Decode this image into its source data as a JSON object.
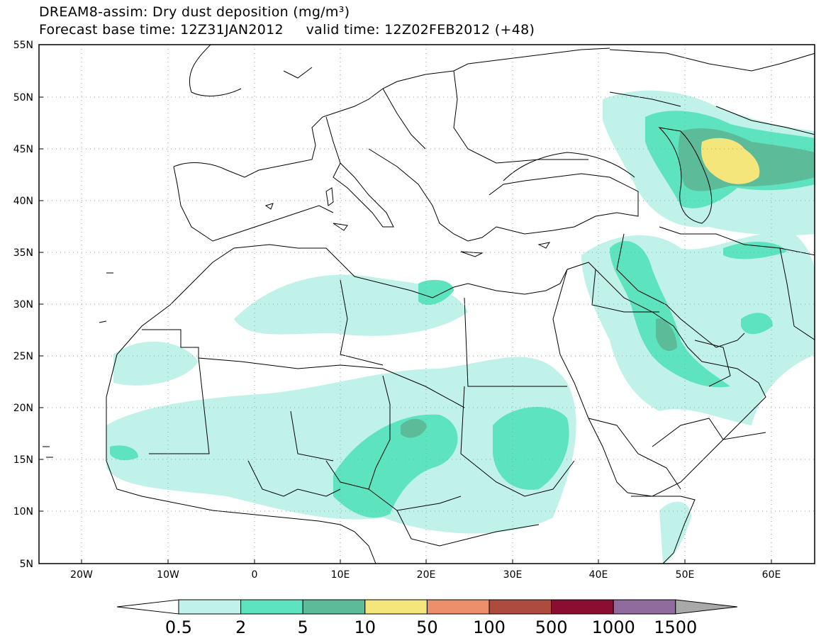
{
  "title_line1": "DREAM8-assim: Dry dust deposition (mg/m³)",
  "title_line2": "Forecast base time: 12Z31JAN2012     valid time: 12Z02FEB2012 (+48)",
  "lat_labels": [
    "55N",
    "50N",
    "45N",
    "40N",
    "35N",
    "30N",
    "25N",
    "20N",
    "15N",
    "10N",
    "5N"
  ],
  "lon_labels": [
    "20W",
    "10W",
    "0",
    "10E",
    "20E",
    "30E",
    "40E",
    "50E",
    "60E"
  ],
  "colorbar": {
    "labels": [
      "0.5",
      "2",
      "5",
      "10",
      "50",
      "100",
      "500",
      "1000",
      "1500"
    ],
    "colors": [
      "#ffffff",
      "#c0f2ea",
      "#5ee3bf",
      "#5cbb98",
      "#f4e67a",
      "#ec8f6b",
      "#ad4c3e",
      "#8b0d2f",
      "#8f6c9d",
      "#a9a9a9"
    ]
  },
  "map_layers": {
    "land_color": "#ffffff",
    "coast_color": "#000000"
  }
}
